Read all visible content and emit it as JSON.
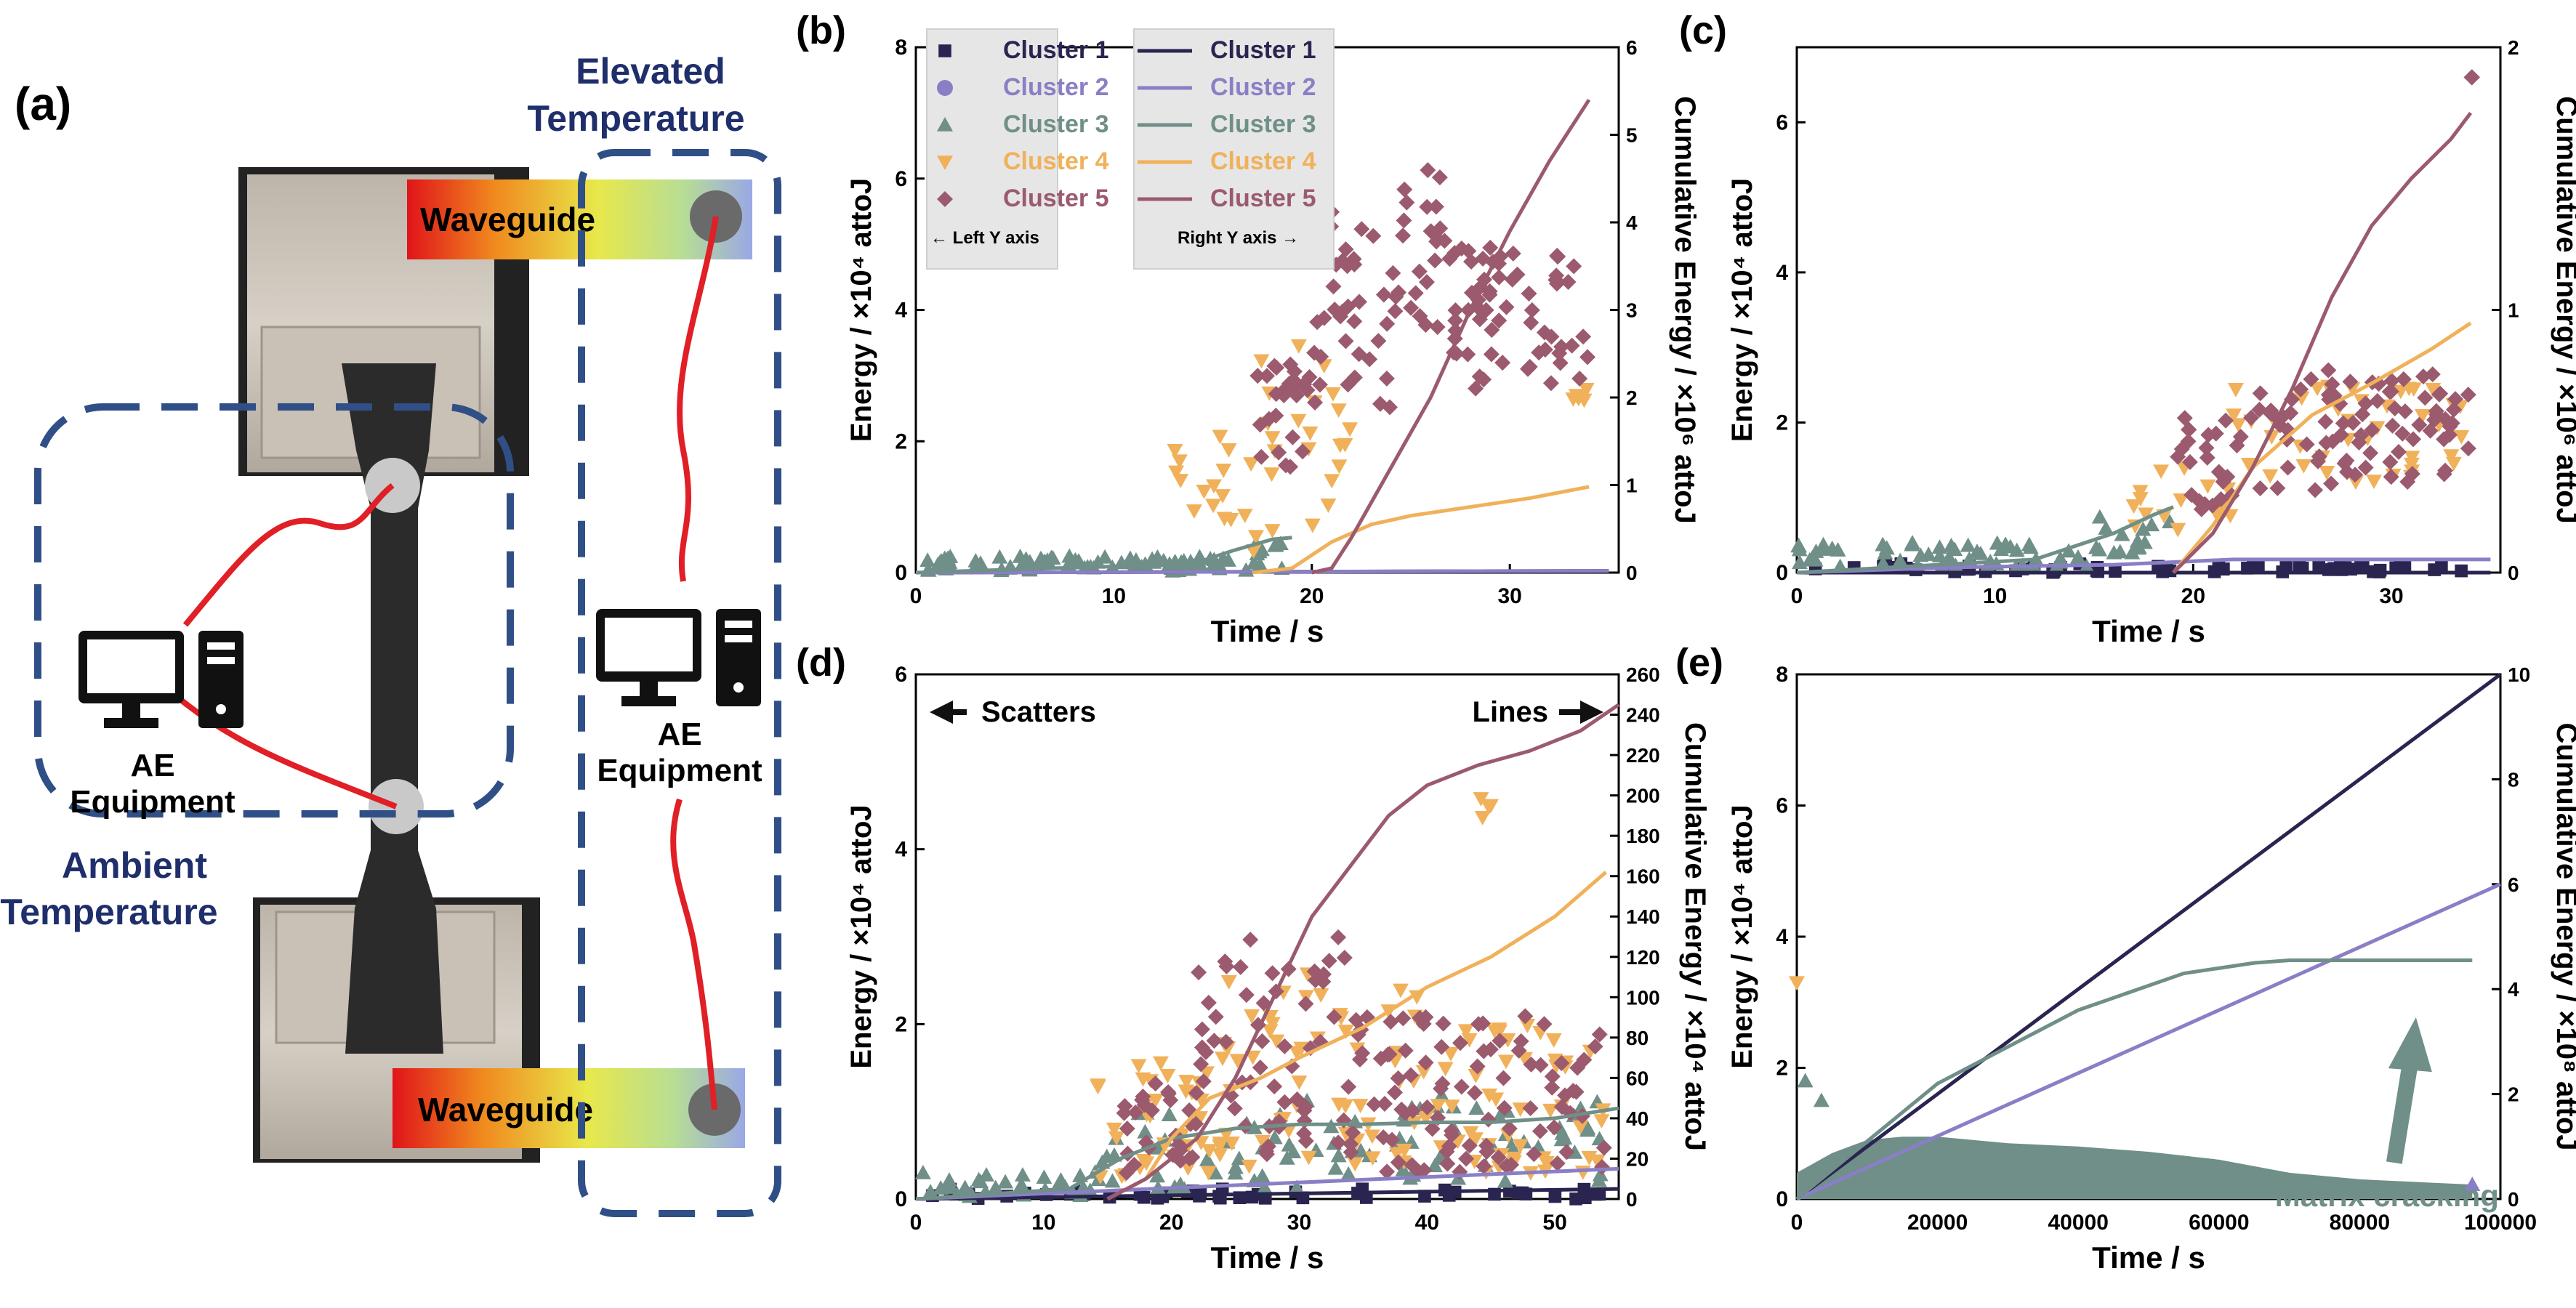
{
  "colors": {
    "cluster1": "#2a2550",
    "cluster2": "#8a7fc6",
    "cluster3": "#6f8f88",
    "cluster4": "#f0b15a",
    "cluster5": "#9b5a6e",
    "dashed_box": "#2f4f86",
    "annotation_text": "#1f2f6b",
    "wire": "#e01f26"
  },
  "panel_a": {
    "label": "(a)",
    "waveguide_top": "Waveguide",
    "waveguide_bottom": "Waveguide",
    "elevated_label_line1": "Elevated",
    "elevated_label_line2": "Temperature",
    "ambient_label_line1": "Ambient",
    "ambient_label_line2": "Temperature",
    "ae_left_line1": "AE",
    "ae_left_line2": "Equipment",
    "ae_right_line1": "AE",
    "ae_right_line2": "Equipment"
  },
  "chart_data": [
    {
      "id": "b",
      "label": "(b)",
      "type": "scatter",
      "xlabel": "Time / s",
      "ylabel": "Energy / ×10⁴ attoJ",
      "y2label": "Cumulative Energy / ×10⁶ attoJ",
      "xlim": [
        0,
        35.5
      ],
      "ylim": [
        0,
        8
      ],
      "y2lim": [
        0,
        6
      ],
      "xticks": [
        "0",
        "10",
        "20",
        "30"
      ],
      "xtick_values": [
        0,
        10,
        20,
        30
      ],
      "yticks": [
        "0",
        "2",
        "4",
        "6",
        "8"
      ],
      "ytick_values": [
        0,
        2,
        4,
        6,
        8
      ],
      "y2ticks": [
        "0",
        "1",
        "2",
        "3",
        "4",
        "5",
        "6"
      ],
      "y2tick_values": [
        0,
        1,
        2,
        3,
        4,
        5,
        6
      ],
      "legend": {
        "scatter_entries": [
          "Cluster 1",
          "Cluster 2",
          "Cluster 3",
          "Cluster 4",
          "Cluster 5"
        ],
        "line_entries": [
          "Cluster 1",
          "Cluster 2",
          "Cluster 3",
          "Cluster 4",
          "Cluster 5"
        ],
        "left_note": "← Left Y axis",
        "right_note": "Right Y axis →"
      },
      "scatter_series": [
        {
          "cluster": 3,
          "marker": "triangle",
          "seed": 11,
          "segments": [
            [
              0,
              17,
              0.02,
              0.25
            ],
            [
              17,
              19,
              0.05,
              0.45
            ]
          ],
          "count": 95
        },
        {
          "cluster": 4,
          "marker": "triangle-down",
          "seed": 23,
          "segments": [
            [
              13,
              16,
              0.1,
              2.2
            ],
            [
              16,
              22,
              0.3,
              3.6
            ],
            [
              33,
              34,
              2.5,
              2.9
            ]
          ],
          "count": 45
        },
        {
          "cluster": 5,
          "marker": "diamond",
          "seed": 37,
          "segments": [
            [
              17,
              20,
              1.6,
              3.2
            ],
            [
              20,
              24,
              2.5,
              5.5
            ],
            [
              24,
              27,
              3.5,
              6.5
            ],
            [
              27,
              34,
              2.8,
              5.0
            ]
          ],
          "count": 150
        }
      ],
      "line_series": [
        {
          "cluster": 1,
          "x": [
            0,
            35
          ],
          "y": [
            0,
            0.02
          ]
        },
        {
          "cluster": 2,
          "x": [
            0,
            35
          ],
          "y": [
            0,
            0.02
          ]
        },
        {
          "cluster": 3,
          "x": [
            0,
            14,
            16,
            18,
            19
          ],
          "y": [
            0,
            0.1,
            0.25,
            0.38,
            0.4
          ]
        },
        {
          "cluster": 4,
          "x": [
            17,
            19,
            21,
            23,
            25,
            28,
            31,
            34
          ],
          "y": [
            0,
            0.05,
            0.35,
            0.55,
            0.65,
            0.75,
            0.85,
            0.98
          ]
        },
        {
          "cluster": 5,
          "x": [
            20,
            21,
            22,
            24,
            26,
            28,
            30,
            32,
            34
          ],
          "y": [
            0,
            0.05,
            0.4,
            1.2,
            2.0,
            3.0,
            3.9,
            4.7,
            5.4
          ]
        }
      ]
    },
    {
      "id": "c",
      "label": "(c)",
      "type": "scatter",
      "xlabel": "Time / s",
      "ylabel": "Energy / ×10⁴ attoJ",
      "y2label": "Cumulative Energy / ×10⁶ attoJ",
      "xlim": [
        0,
        35.5
      ],
      "ylim": [
        0,
        7
      ],
      "y2lim": [
        0,
        2
      ],
      "xticks": [
        "0",
        "10",
        "20",
        "30"
      ],
      "xtick_values": [
        0,
        10,
        20,
        30
      ],
      "yticks": [
        "0",
        "2",
        "4",
        "6"
      ],
      "ytick_values": [
        0,
        2,
        4,
        6
      ],
      "y2ticks": [
        "0",
        "1",
        "2"
      ],
      "y2tick_values": [
        0,
        1,
        2
      ],
      "scatter_series": [
        {
          "cluster": 1,
          "marker": "square",
          "seed": 5,
          "segments": [
            [
              0,
              34,
              0.0,
              0.12
            ]
          ],
          "count": 60
        },
        {
          "cluster": 3,
          "marker": "triangle",
          "seed": 13,
          "segments": [
            [
              0,
              15,
              0.05,
              0.4
            ],
            [
              15,
              19,
              0.2,
              0.9
            ]
          ],
          "count": 70
        },
        {
          "cluster": 4,
          "marker": "triangle-down",
          "seed": 29,
          "segments": [
            [
              17,
              22,
              0.5,
              1.5
            ],
            [
              22,
              34,
              1.2,
              2.5
            ]
          ],
          "count": 60
        },
        {
          "cluster": 5,
          "marker": "diamond",
          "seed": 41,
          "segments": [
            [
              19,
              22,
              0.8,
              2.2
            ],
            [
              22,
              34,
              1.1,
              2.7
            ],
            [
              34,
              34.1,
              6.6,
              6.6
            ]
          ],
          "count": 110
        }
      ],
      "line_series": [
        {
          "cluster": 1,
          "x": [
            0,
            35
          ],
          "y": [
            0,
            0.0
          ]
        },
        {
          "cluster": 2,
          "x": [
            0,
            8,
            16,
            22,
            35
          ],
          "y": [
            0,
            0.02,
            0.03,
            0.05,
            0.05
          ]
        },
        {
          "cluster": 3,
          "x": [
            0,
            12,
            16,
            18,
            19
          ],
          "y": [
            0,
            0.05,
            0.15,
            0.22,
            0.25
          ]
        },
        {
          "cluster": 4,
          "x": [
            19,
            21,
            23,
            26,
            29,
            32,
            34
          ],
          "y": [
            0,
            0.18,
            0.4,
            0.6,
            0.72,
            0.85,
            0.95
          ]
        },
        {
          "cluster": 5,
          "x": [
            19,
            21,
            23,
            25,
            27,
            29,
            31,
            33,
            34
          ],
          "y": [
            0,
            0.15,
            0.4,
            0.7,
            1.05,
            1.32,
            1.5,
            1.65,
            1.75
          ]
        }
      ]
    },
    {
      "id": "d",
      "label": "(d)",
      "type": "scatter",
      "xlabel": "Time / s",
      "ylabel": "Energy / ×10⁴ attoJ",
      "y2label": "Cumulative Energy / ×10⁴ attoJ",
      "xlim": [
        0,
        55
      ],
      "ylim": [
        0,
        6
      ],
      "y2lim": [
        0,
        260
      ],
      "xticks": [
        "0",
        "10",
        "20",
        "30",
        "40",
        "50"
      ],
      "xtick_values": [
        0,
        10,
        20,
        30,
        40,
        50
      ],
      "yticks": [
        "0",
        "2",
        "4",
        "6"
      ],
      "ytick_values": [
        0,
        2,
        4,
        6
      ],
      "y2ticks": [
        "0",
        "20",
        "40",
        "60",
        "80",
        "100",
        "120",
        "140",
        "160",
        "180",
        "200",
        "220",
        "240",
        "260"
      ],
      "y2tick_values": [
        0,
        20,
        40,
        60,
        80,
        100,
        120,
        140,
        160,
        180,
        200,
        220,
        240,
        260
      ],
      "annotations": {
        "scatters": "Scatters",
        "lines": "Lines"
      },
      "scatter_series": [
        {
          "cluster": 1,
          "marker": "square",
          "seed": 7,
          "segments": [
            [
              0,
              54,
              0.0,
              0.12
            ]
          ],
          "count": 50
        },
        {
          "cluster": 3,
          "marker": "triangle",
          "seed": 17,
          "segments": [
            [
              0,
              14,
              0.02,
              0.3
            ],
            [
              14,
              30,
              0.1,
              1.0
            ],
            [
              30,
              54,
              0.2,
              1.2
            ]
          ],
          "count": 120
        },
        {
          "cluster": 4,
          "marker": "triangle-down",
          "seed": 31,
          "segments": [
            [
              14,
              24,
              0.2,
              1.6
            ],
            [
              24,
              40,
              0.3,
              2.6
            ],
            [
              40,
              54,
              0.3,
              2.0
            ],
            [
              44,
              45,
              4.3,
              4.6
            ]
          ],
          "count": 150
        },
        {
          "cluster": 5,
          "marker": "diamond",
          "seed": 43,
          "segments": [
            [
              16,
              22,
              0.3,
              1.4
            ],
            [
              22,
              34,
              0.5,
              3.1
            ],
            [
              34,
              54,
              0.3,
              2.1
            ]
          ],
          "count": 180
        }
      ],
      "line_series": [
        {
          "cluster": 1,
          "x": [
            0,
            55
          ],
          "y": [
            0,
            5
          ]
        },
        {
          "cluster": 2,
          "x": [
            0,
            55
          ],
          "y": [
            0,
            15
          ]
        },
        {
          "cluster": 3,
          "x": [
            0,
            12,
            16,
            20,
            25,
            30,
            35,
            40,
            45,
            50,
            55
          ],
          "y": [
            0,
            5,
            20,
            30,
            35,
            37,
            37,
            38,
            38,
            40,
            45
          ]
        },
        {
          "cluster": 4,
          "x": [
            15,
            18,
            20,
            23,
            27,
            30,
            35,
            40,
            45,
            50,
            54
          ],
          "y": [
            0,
            10,
            30,
            50,
            60,
            70,
            85,
            105,
            120,
            140,
            162
          ]
        },
        {
          "cluster": 5,
          "x": [
            15,
            18,
            22,
            25,
            28,
            31,
            34,
            37,
            40,
            44,
            48,
            52,
            55
          ],
          "y": [
            0,
            10,
            30,
            60,
            100,
            140,
            165,
            190,
            205,
            215,
            222,
            232,
            245
          ]
        }
      ]
    },
    {
      "id": "e",
      "label": "(e)",
      "type": "area",
      "xlabel": "Time / s",
      "ylabel": "Energy / ×10⁴ attoJ",
      "y2label": "Cumulative Energy / ×10⁸ attoJ",
      "xlim": [
        0,
        100000
      ],
      "ylim": [
        0,
        8
      ],
      "y2lim": [
        0,
        10
      ],
      "xticks": [
        "0",
        "20000",
        "40000",
        "60000",
        "80000",
        "100000"
      ],
      "xtick_values": [
        0,
        20000,
        40000,
        60000,
        80000,
        100000
      ],
      "yticks": [
        "0",
        "2",
        "4",
        "6",
        "8"
      ],
      "ytick_values": [
        0,
        2,
        4,
        6,
        8
      ],
      "y2ticks": [
        "0",
        "2",
        "4",
        "6",
        "8",
        "10"
      ],
      "y2tick_values": [
        0,
        2,
        4,
        6,
        8,
        10
      ],
      "annotation": "Matrix cracking",
      "annotation_point": [
        88000,
        3.6
      ],
      "scatter_area": {
        "cluster": 3,
        "x": [
          0,
          5000,
          10000,
          15000,
          20000,
          30000,
          40000,
          50000,
          60000,
          70000,
          80000,
          90000,
          96000
        ],
        "y": [
          0.4,
          0.7,
          0.9,
          0.95,
          0.95,
          0.85,
          0.8,
          0.72,
          0.6,
          0.4,
          0.3,
          0.25,
          0.22
        ]
      },
      "scatter_points": [
        {
          "cluster": 4,
          "x": 0,
          "y": 3.3
        },
        {
          "cluster": 3,
          "x": 1200,
          "y": 1.8
        },
        {
          "cluster": 3,
          "x": 3500,
          "y": 1.5
        },
        {
          "cluster": 2,
          "x": 96000,
          "y": 0.22
        }
      ],
      "line_series": [
        {
          "cluster": 1,
          "x": [
            0,
            100000
          ],
          "y": [
            0,
            10
          ]
        },
        {
          "cluster": 2,
          "x": [
            0,
            100000
          ],
          "y": [
            0,
            6
          ]
        },
        {
          "cluster": 3,
          "x": [
            0,
            20000,
            40000,
            55000,
            65000,
            70000,
            96000
          ],
          "y": [
            0,
            2.2,
            3.6,
            4.3,
            4.5,
            4.55,
            4.55
          ]
        }
      ]
    }
  ]
}
